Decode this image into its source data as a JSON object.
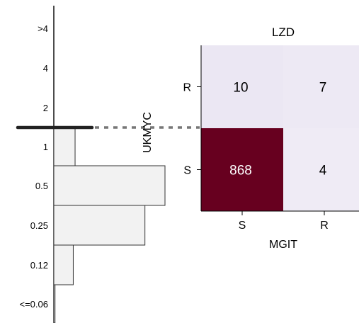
{
  "chart_data": [
    {
      "type": "bar",
      "orientation": "horizontal",
      "categories": [
        ">4",
        "4",
        "2",
        "1",
        "0.5",
        "0.25",
        "0.12",
        "<=0.06"
      ],
      "values": [
        0,
        0,
        0,
        35,
        183,
        150,
        32,
        2
      ],
      "breakpoint": "between 2 and 1",
      "colors": {
        "bar_fill": "#f2f2f2",
        "bar_stroke": "#333333",
        "breakpoint": "#222222",
        "connector": "#777777"
      }
    },
    {
      "type": "heatmap",
      "title": "LZD",
      "xlabel": "MGIT",
      "ylabel": "UKMYC",
      "x_categories": [
        "S",
        "R"
      ],
      "y_categories": [
        "R",
        "S"
      ],
      "cells": [
        {
          "row": "R",
          "col": "S",
          "value": 10
        },
        {
          "row": "R",
          "col": "R",
          "value": 7
        },
        {
          "row": "S",
          "col": "S",
          "value": 868
        },
        {
          "row": "S",
          "col": "R",
          "value": 4
        }
      ],
      "colors": {
        "low": "#f4f1f8",
        "high": "#67001f"
      }
    }
  ]
}
